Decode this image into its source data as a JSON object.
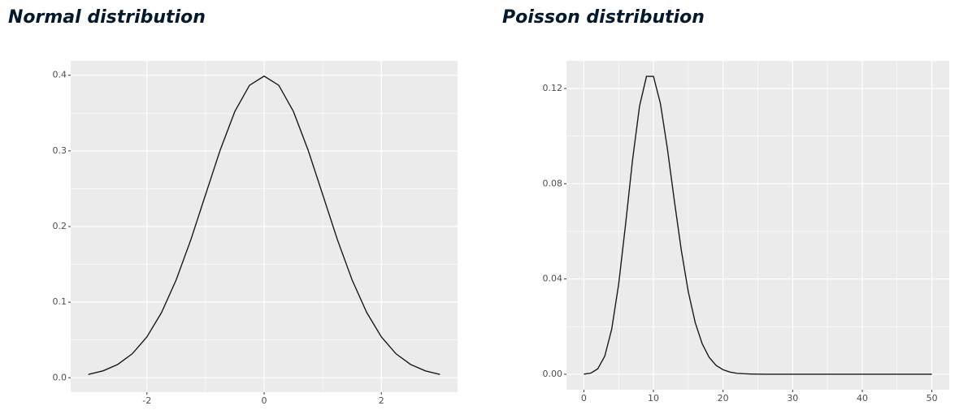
{
  "chart_data": [
    {
      "type": "line",
      "title": "Normal distribution",
      "x": [
        -3,
        -2.75,
        -2.5,
        -2.25,
        -2,
        -1.75,
        -1.5,
        -1.25,
        -1,
        -0.75,
        -0.5,
        -0.25,
        0,
        0.25,
        0.5,
        0.75,
        1,
        1.25,
        1.5,
        1.75,
        2,
        2.25,
        2.5,
        2.75,
        3
      ],
      "values": [
        0.0044,
        0.0091,
        0.0175,
        0.0317,
        0.054,
        0.0863,
        0.1295,
        0.1826,
        0.242,
        0.3011,
        0.3521,
        0.3867,
        0.3989,
        0.3867,
        0.3521,
        0.3011,
        0.242,
        0.1826,
        0.1295,
        0.0863,
        0.054,
        0.0317,
        0.0175,
        0.0091,
        0.0044
      ],
      "color": "#1a1a1a",
      "xlim": [
        -3.3,
        3.3
      ],
      "xticks": [
        -2,
        0,
        2
      ],
      "ylim": [
        -0.019,
        0.419
      ],
      "yticks": [
        {
          "value": 0,
          "label": "0.0"
        },
        0.1,
        0.2,
        0.3,
        0.4
      ],
      "grid": true
    },
    {
      "type": "line",
      "title": "Poisson distribution",
      "x": [
        0,
        1,
        2,
        3,
        4,
        5,
        6,
        7,
        8,
        9,
        10,
        11,
        12,
        13,
        14,
        15,
        16,
        17,
        18,
        19,
        20,
        21,
        22,
        23,
        24,
        25,
        26,
        27,
        28,
        29,
        30,
        31,
        32,
        33,
        34,
        35,
        36,
        37,
        38,
        39,
        40,
        41,
        42,
        43,
        44,
        45,
        46,
        47,
        48,
        49,
        50
      ],
      "values": [
        4.54e-05,
        0.000454,
        0.00227,
        0.00757,
        0.0189,
        0.0378,
        0.0631,
        0.0901,
        0.1126,
        0.1251,
        0.1251,
        0.1137,
        0.0948,
        0.0729,
        0.0521,
        0.0347,
        0.0217,
        0.0128,
        0.0071,
        0.0037,
        0.0019,
        0.0009,
        0.0004,
        0.0002,
        0.0001,
        4e-05,
        0,
        0,
        0,
        0,
        0,
        0,
        0,
        0,
        0,
        0,
        0,
        0,
        0,
        0,
        0,
        0,
        0,
        0,
        0,
        0,
        0,
        0,
        0,
        0,
        0
      ],
      "color": "#1a1a1a",
      "xlim": [
        -2.5,
        52.5
      ],
      "xticks": [
        0,
        10,
        20,
        30,
        40,
        50
      ],
      "ylim": [
        -0.0065,
        0.1316
      ],
      "yticks": [
        {
          "value": 0,
          "label": "0.00"
        },
        0.04,
        0.08,
        0.12
      ],
      "grid": true
    }
  ]
}
